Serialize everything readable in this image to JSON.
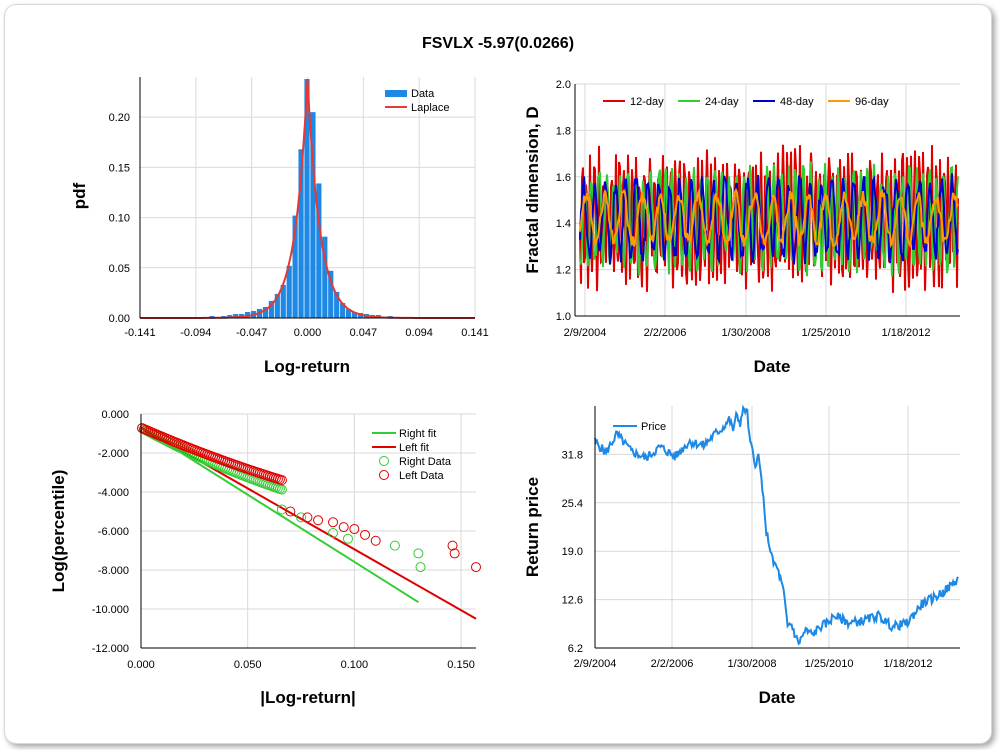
{
  "title": "FSVLX -5.97(0.0266)",
  "chart_data": [
    {
      "id": "pdf",
      "type": "bar",
      "xlabel": "Log-return",
      "ylabel": "pdf",
      "xlim": [
        -0.141,
        0.141
      ],
      "ylim": [
        0,
        0.24
      ],
      "xticks": [
        "-0.141",
        "-0.094",
        "-0.047",
        "0.000",
        "0.047",
        "0.094",
        "0.141"
      ],
      "yticks": [
        "0.00",
        "0.05",
        "0.10",
        "0.15",
        "0.20"
      ],
      "legend": [
        "Data",
        "Laplace"
      ],
      "colors": {
        "data": "#1e88e5",
        "laplace": "#e53935"
      },
      "bins_x": [
        -0.1,
        -0.09,
        -0.08,
        -0.07,
        -0.065,
        -0.06,
        -0.055,
        -0.05,
        -0.045,
        -0.04,
        -0.035,
        -0.03,
        -0.025,
        -0.02,
        -0.015,
        -0.01,
        -0.005,
        0.0,
        0.005,
        0.01,
        0.015,
        0.02,
        0.025,
        0.03,
        0.035,
        0.04,
        0.045,
        0.05,
        0.055,
        0.06,
        0.07,
        0.08,
        0.09
      ],
      "bins_y": [
        0.001,
        0.001,
        0.002,
        0.002,
        0.003,
        0.004,
        0.004,
        0.006,
        0.007,
        0.009,
        0.011,
        0.017,
        0.024,
        0.033,
        0.052,
        0.102,
        0.168,
        0.238,
        0.205,
        0.134,
        0.081,
        0.047,
        0.026,
        0.015,
        0.009,
        0.006,
        0.005,
        0.004,
        0.003,
        0.003,
        0.002,
        0.001,
        0.001
      ],
      "laplace": {
        "mu": 0.0,
        "b": 0.0021,
        "peak": 0.238
      }
    },
    {
      "id": "fractal",
      "type": "line",
      "xlabel": "Date",
      "ylabel": "Fractal dimension, D",
      "xticks": [
        "2/9/2004",
        "2/2/2006",
        "1/30/2008",
        "1/25/2010",
        "1/18/2012"
      ],
      "yticks": [
        "1.0",
        "1.2",
        "1.4",
        "1.6",
        "1.8",
        "2.0"
      ],
      "ylim": [
        1.0,
        2.0
      ],
      "series": [
        {
          "name": "12-day",
          "color": "#e00000",
          "period": 4.2,
          "amp": 0.26,
          "seed": 3
        },
        {
          "name": "24-day",
          "color": "#33cc33",
          "period": 7,
          "amp": 0.2,
          "seed": 7
        },
        {
          "name": "48-day",
          "color": "#0000cc",
          "period": 11,
          "amp": 0.16,
          "seed": 11
        },
        {
          "name": "96-day",
          "color": "#ff9900",
          "period": 18,
          "amp": 0.1,
          "seed": 17
        }
      ]
    },
    {
      "id": "tail",
      "type": "scatter",
      "xlabel": "|Log-return|",
      "ylabel": "Log(percentile)",
      "xlim": [
        0,
        0.157
      ],
      "ylim": [
        -12,
        0
      ],
      "xticks": [
        "0.000",
        "0.050",
        "0.100",
        "0.150"
      ],
      "yticks": [
        "0.000",
        "-2.000",
        "-4.000",
        "-6.000",
        "-8.000",
        "-10.000",
        "-12.000"
      ],
      "legend": [
        "Right fit",
        "Left fit",
        "Right Data",
        "Left Data"
      ],
      "right_fit": [
        [
          0,
          -0.69
        ],
        [
          0.13,
          -9.65
        ]
      ],
      "left_fit": [
        [
          0,
          -0.69
        ],
        [
          0.157,
          -10.5
        ]
      ],
      "right_outliers": [
        [
          0.066,
          -4.9
        ],
        [
          0.075,
          -5.3
        ],
        [
          0.09,
          -6.1
        ],
        [
          0.097,
          -6.4
        ],
        [
          0.119,
          -6.75
        ],
        [
          0.13,
          -7.15
        ],
        [
          0.131,
          -7.85
        ]
      ],
      "left_outliers": [
        [
          0.07,
          -5.0
        ],
        [
          0.078,
          -5.3
        ],
        [
          0.083,
          -5.45
        ],
        [
          0.09,
          -5.55
        ],
        [
          0.095,
          -5.8
        ],
        [
          0.1,
          -5.9
        ],
        [
          0.105,
          -6.2
        ],
        [
          0.11,
          -6.5
        ],
        [
          0.146,
          -6.75
        ],
        [
          0.147,
          -7.15
        ],
        [
          0.157,
          -7.85
        ]
      ]
    },
    {
      "id": "price",
      "type": "line",
      "xlabel": "Date",
      "ylabel": "Return price",
      "xticks": [
        "2/9/2004",
        "2/2/2006",
        "1/30/2008",
        "1/25/2010",
        "1/18/2012"
      ],
      "yticks": [
        "6.2",
        "12.6",
        "19.0",
        "25.4",
        "31.8"
      ],
      "ylim": [
        6.2,
        38.2
      ],
      "series": [
        {
          "name": "Price",
          "color": "#1e88e5",
          "x": [
            0,
            0.03,
            0.06,
            0.1,
            0.14,
            0.18,
            0.22,
            0.26,
            0.3,
            0.33,
            0.35,
            0.37,
            0.38,
            0.39,
            0.4,
            0.41,
            0.42,
            0.425,
            0.43,
            0.44,
            0.45,
            0.46,
            0.47,
            0.48,
            0.49,
            0.5,
            0.51,
            0.52,
            0.53,
            0.54,
            0.56,
            0.58,
            0.6,
            0.62,
            0.64,
            0.66,
            0.7,
            0.74,
            0.78,
            0.82,
            0.86,
            0.9,
            0.94,
            0.97,
            1.0
          ],
          "y": [
            33.5,
            32.0,
            34.5,
            32.2,
            31.3,
            32.8,
            31.5,
            33.5,
            33.0,
            34.5,
            35.2,
            36.5,
            35.0,
            37.0,
            36.0,
            38.0,
            37.2,
            34.0,
            33.0,
            30.5,
            31.5,
            28.0,
            22.0,
            20.0,
            17.5,
            17.0,
            15.5,
            13.5,
            9.0,
            9.5,
            6.8,
            8.5,
            8.0,
            9.0,
            9.5,
            10.5,
            9.5,
            9.8,
            10.5,
            9.0,
            9.5,
            12.0,
            13.0,
            14.0,
            15.3
          ]
        }
      ]
    }
  ]
}
